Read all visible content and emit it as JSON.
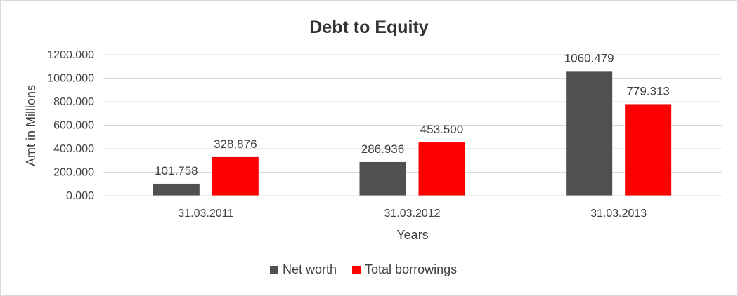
{
  "chart_data": {
    "type": "bar",
    "title": "Debt to Equity",
    "xlabel": "Years",
    "ylabel": "Amt in Millions",
    "categories": [
      "31.03.2011",
      "31.03.2012",
      "31.03.2013"
    ],
    "series": [
      {
        "name": "Net worth",
        "color": "#505050",
        "values": [
          101.758,
          286.936,
          1060.479
        ],
        "labels": [
          "101.758",
          "286.936",
          "1060.479"
        ]
      },
      {
        "name": "Total borrowings",
        "color": "#ff0000",
        "values": [
          328.876,
          453.5,
          779.313
        ],
        "labels": [
          "328.876",
          "453.500",
          "779.313"
        ]
      }
    ],
    "ylim": [
      0,
      1200
    ],
    "yticks": [
      0,
      200,
      400,
      600,
      800,
      1000,
      1200
    ],
    "ytick_labels": [
      "0.000",
      "200.000",
      "400.000",
      "600.000",
      "800.000",
      "1000.000",
      "1200.000"
    ],
    "grid": true,
    "legend_position": "bottom"
  }
}
